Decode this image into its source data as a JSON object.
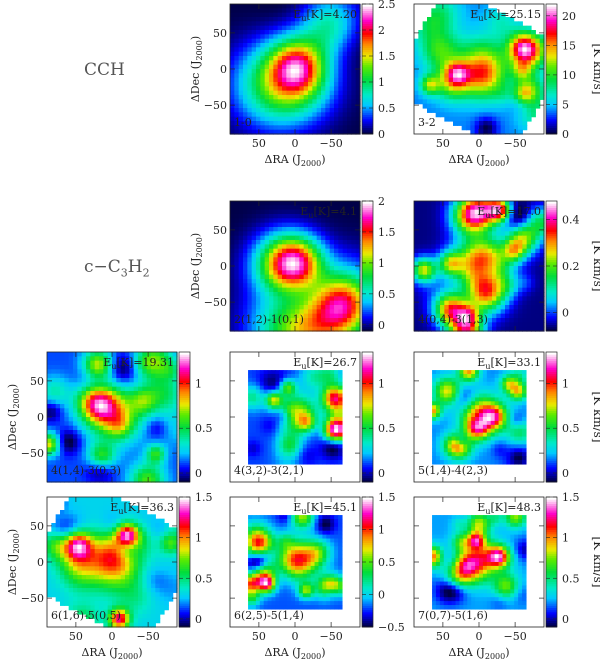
{
  "molecules": [
    {
      "label": "CCH",
      "row": 0
    },
    {
      "label": "c-C3H2",
      "row": 1
    }
  ],
  "chart_data": {
    "type": "heatmap",
    "xlabel": "ΔRA (J2000)",
    "ylabel": "ΔDec (J2000)",
    "colorbar_label": "[K km/s]",
    "x_ticks": [
      50,
      0,
      -50
    ],
    "y_ticks": [
      50,
      0,
      -50
    ],
    "panels": [
      {
        "row": 0,
        "col": 1,
        "transition": "1-0",
        "eu": "Eu[K]=4.20",
        "cbar_ticks": [
          0,
          0.5,
          1,
          1.5,
          2,
          2.5
        ],
        "vmin": 0,
        "vmax": 2.5,
        "extent": "full",
        "seed": 11,
        "xlabel": true,
        "ylabel": true,
        "cbar_label": false
      },
      {
        "row": 0,
        "col": 2,
        "transition": "3-2",
        "eu": "Eu[K]=25.15",
        "cbar_ticks": [
          0,
          5,
          10,
          15,
          20
        ],
        "vmin": 0,
        "vmax": 22,
        "extent": "tilted",
        "seed": 23,
        "xlabel": true,
        "ylabel": false,
        "cbar_label": true
      },
      {
        "row": 1,
        "col": 1,
        "transition": "2(1,2)-1(0,1)",
        "eu": "Eu[K]=4.1",
        "cbar_ticks": [
          0,
          0.5,
          1,
          1.5,
          2
        ],
        "vmin": -0.1,
        "vmax": 2,
        "extent": "full",
        "seed": 37,
        "xlabel": false,
        "ylabel": true,
        "cbar_label": false
      },
      {
        "row": 1,
        "col": 2,
        "transition": "4(0,4)-3(1,3)",
        "eu": "Eu[K]=17.0",
        "cbar_ticks": [
          0,
          0.2,
          0.4
        ],
        "vmin": -0.08,
        "vmax": 0.48,
        "extent": "full",
        "seed": 41,
        "xlabel": false,
        "ylabel": false,
        "cbar_label": true
      },
      {
        "row": 2,
        "col": 0,
        "transition": "4(1,4)-3(0,3)",
        "eu": "Eu[K]=19.31",
        "cbar_ticks": [
          0,
          0.5,
          1
        ],
        "vmin": -0.1,
        "vmax": 1.35,
        "extent": "full",
        "seed": 53,
        "xlabel": false,
        "ylabel": true,
        "cbar_label": false
      },
      {
        "row": 2,
        "col": 1,
        "transition": "4(3,2)-3(2,1)",
        "eu": "Eu[K]=26.7",
        "cbar_ticks": [
          0,
          0.5,
          1
        ],
        "vmin": -0.1,
        "vmax": 1.35,
        "extent": "small",
        "seed": 61,
        "xlabel": false,
        "ylabel": false,
        "cbar_label": false
      },
      {
        "row": 2,
        "col": 2,
        "transition": "5(1,4)-4(2,3)",
        "eu": "Eu[K]=33.1",
        "cbar_ticks": [
          0,
          0.5,
          1
        ],
        "vmin": -0.1,
        "vmax": 1.35,
        "extent": "small",
        "seed": 67,
        "xlabel": false,
        "ylabel": false,
        "cbar_label": true
      },
      {
        "row": 3,
        "col": 0,
        "transition": "6(1,6)-5(0,5)",
        "eu": "Eu[K]=36.3",
        "cbar_ticks": [
          0,
          0.5,
          1,
          1.5
        ],
        "vmin": -0.1,
        "vmax": 1.5,
        "extent": "tilted",
        "seed": 71,
        "xlabel": true,
        "ylabel": true,
        "cbar_label": false
      },
      {
        "row": 3,
        "col": 1,
        "transition": "6(2,5)-5(1,4)",
        "eu": "Eu[K]=45.1",
        "cbar_ticks": [
          -0.5,
          0,
          0.5,
          1,
          1.5
        ],
        "vmin": -0.5,
        "vmax": 1.5,
        "extent": "small",
        "seed": 79,
        "xlabel": true,
        "ylabel": false,
        "cbar_label": false
      },
      {
        "row": 3,
        "col": 2,
        "transition": "7(0,7)-5(1,6)",
        "eu": "Eu[K]=48.3",
        "cbar_ticks": [
          0,
          0.5,
          1,
          1.5
        ],
        "vmin": -0.1,
        "vmax": 1.5,
        "extent": "small",
        "seed": 83,
        "xlabel": true,
        "ylabel": false,
        "cbar_label": true
      }
    ]
  }
}
